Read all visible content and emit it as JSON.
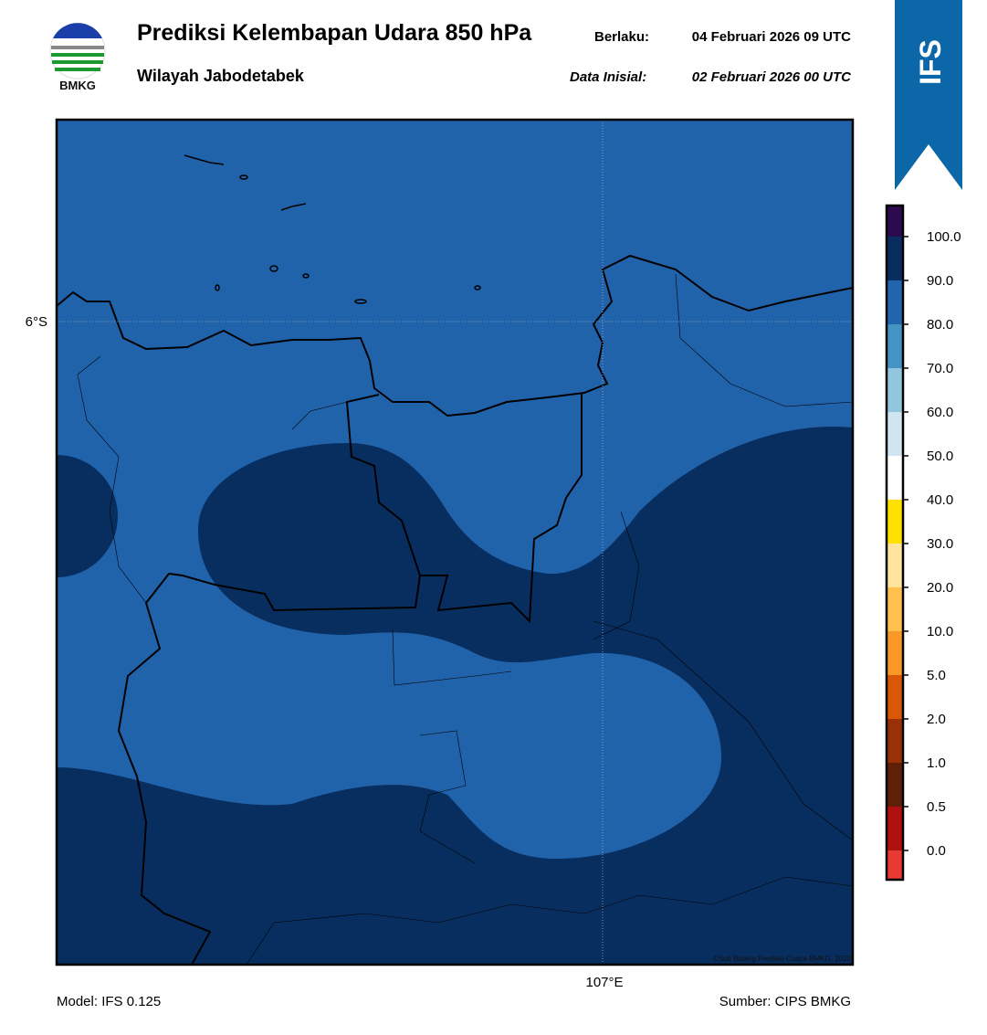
{
  "header": {
    "title": "Prediksi Kelembapan Udara 850 hPa",
    "subtitle": "Wilayah Jabodetabek",
    "valid_label": "Berlaku:",
    "valid_time": "04 Februari 2026 09 UTC",
    "init_label": "Data Inisial:",
    "init_time": "02 Februari 2026 00 UTC",
    "logo_text": "BMKG",
    "badge": "IFS"
  },
  "map": {
    "lat_label": "6°S",
    "lon_label": "107°E",
    "credit": "©Sub Bidang Prediksi Cuaca BMKG, 2020"
  },
  "colorbar": {
    "labels": [
      "100.0",
      "90.0",
      "80.0",
      "70.0",
      "60.0",
      "50.0",
      "40.0",
      "30.0",
      "20.0",
      "10.0",
      "5.0",
      "2.0",
      "1.0",
      "0.5",
      "0.0"
    ],
    "colors": [
      "#2d0a4e",
      "#082d5e",
      "#2166ac",
      "#4393c3",
      "#92c5de",
      "#d1e5f0",
      "#ffffff",
      "#ffe000",
      "#ffe4a0",
      "#ffc050",
      "#f89828",
      "#d85808",
      "#9a3008",
      "#5e2008",
      "#b01010",
      "#e83a30"
    ]
  },
  "footer": {
    "model": "Model: IFS 0.125",
    "source": "Sumber: CIPS BMKG"
  }
}
